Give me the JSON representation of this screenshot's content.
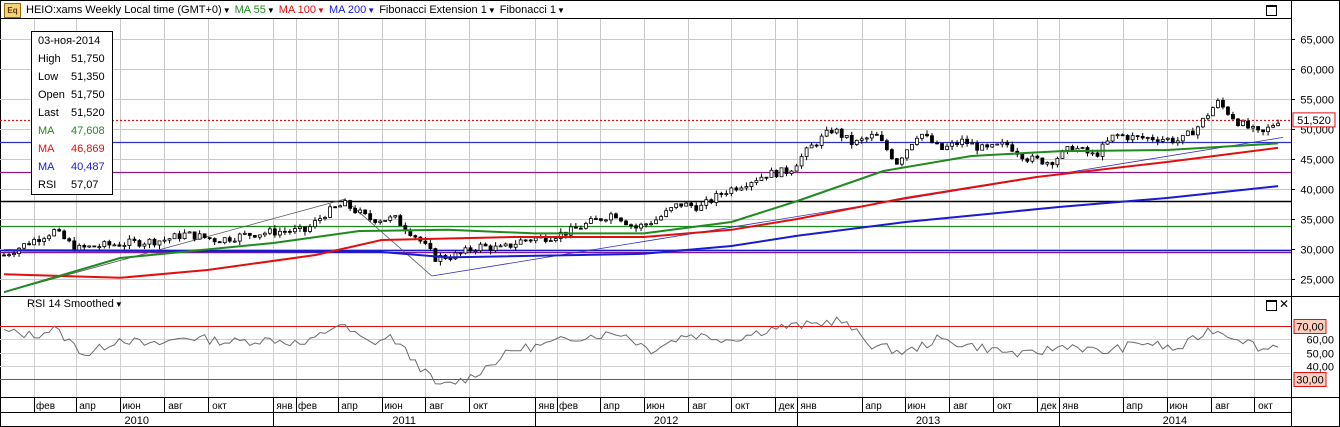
{
  "header": {
    "logo_text": "Eq",
    "instrument": "HEIO:xams Weekly Local time (GMT+0)",
    "indicators": [
      {
        "label": "MA 55",
        "color": "#1f8a1f"
      },
      {
        "label": "MA 100",
        "color": "#e01010"
      },
      {
        "label": "MA 200",
        "color": "#1a1ad0"
      },
      {
        "label": "Fibonacci Extension 1",
        "color": "#000000"
      },
      {
        "label": "Fibonacci 1",
        "color": "#000000"
      }
    ]
  },
  "infobox": {
    "date": "03-ноя-2014",
    "rows": [
      {
        "key": "High",
        "value": "51,750",
        "color": "#000000"
      },
      {
        "key": "Low",
        "value": "51,350",
        "color": "#000000"
      },
      {
        "key": "Open",
        "value": "51,750",
        "color": "#000000"
      },
      {
        "key": "Last",
        "value": "51,520",
        "color": "#000000"
      },
      {
        "key": "MA",
        "value": "47,608",
        "color": "#1f8a1f"
      },
      {
        "key": "MA",
        "value": "46,869",
        "color": "#e01010"
      },
      {
        "key": "MA",
        "value": "40,487",
        "color": "#1a1ad0"
      },
      {
        "key": "RSI",
        "value": "57,07",
        "color": "#000000"
      }
    ]
  },
  "rsi_panel": {
    "title": "RSI 14 Smoothed"
  },
  "chart_data": {
    "type": "candlestick",
    "price_axis": {
      "ticks": [
        25000,
        30000,
        35000,
        40000,
        45000,
        50000,
        55000,
        60000,
        65000
      ],
      "tick_labels": [
        "25,000",
        "30,000",
        "35,000",
        "40,000",
        "45,000",
        "50,000",
        "55,000",
        "60,000",
        "65,000"
      ],
      "range": [
        22500,
        68500
      ]
    },
    "last_price": {
      "value": 51520,
      "label": "51,520"
    },
    "rsi_axis": {
      "ticks": [
        40,
        50,
        60,
        70
      ],
      "tick_labels": [
        "40,00",
        "50,00",
        "60,00",
        "70,00"
      ],
      "range": [
        18,
        80
      ],
      "upper": {
        "value": 70,
        "label": "70,00"
      },
      "lower": {
        "value": 30,
        "label": "30,00"
      }
    },
    "month_ticks": [
      {
        "label": "фев",
        "date": "2010-02-01"
      },
      {
        "label": "апр",
        "date": "2010-04-01"
      },
      {
        "label": "июн",
        "date": "2010-06-01"
      },
      {
        "label": "авг",
        "date": "2010-08-01"
      },
      {
        "label": "окт",
        "date": "2010-10-01"
      },
      {
        "label": "янв",
        "date": "2011-01-01"
      },
      {
        "label": "фев",
        "date": "2011-02-01"
      },
      {
        "label": "апр",
        "date": "2011-04-01"
      },
      {
        "label": "июн",
        "date": "2011-06-01"
      },
      {
        "label": "авг",
        "date": "2011-08-01"
      },
      {
        "label": "окт",
        "date": "2011-10-01"
      },
      {
        "label": "янв",
        "date": "2012-01-01"
      },
      {
        "label": "фев",
        "date": "2012-02-01"
      },
      {
        "label": "апр",
        "date": "2012-04-01"
      },
      {
        "label": "июн",
        "date": "2012-06-01"
      },
      {
        "label": "авг",
        "date": "2012-08-01"
      },
      {
        "label": "окт",
        "date": "2012-10-01"
      },
      {
        "label": "дек",
        "date": "2012-12-01"
      },
      {
        "label": "янв",
        "date": "2013-01-01"
      },
      {
        "label": "апр",
        "date": "2013-04-01"
      },
      {
        "label": "июн",
        "date": "2013-06-01"
      },
      {
        "label": "авг",
        "date": "2013-08-01"
      },
      {
        "label": "окт",
        "date": "2013-10-01"
      },
      {
        "label": "дек",
        "date": "2013-12-01"
      },
      {
        "label": "янв",
        "date": "2014-01-01"
      },
      {
        "label": "апр",
        "date": "2014-04-01"
      },
      {
        "label": "июн",
        "date": "2014-06-01"
      },
      {
        "label": "авг",
        "date": "2014-08-01"
      },
      {
        "label": "окт",
        "date": "2014-10-01"
      }
    ],
    "years": [
      "2010",
      "2011",
      "2012",
      "2013",
      "2014"
    ],
    "horizontal_levels": [
      {
        "value": 51520,
        "color": "#e01010",
        "style": "dotted"
      },
      {
        "value": 47800,
        "color": "#3030c0",
        "style": "solid"
      },
      {
        "value": 42900,
        "color": "#8a1a8a",
        "style": "solid"
      },
      {
        "value": 38000,
        "color": "#000000",
        "style": "solid"
      },
      {
        "value": 33800,
        "color": "#1f8a1f",
        "style": "solid"
      },
      {
        "value": 29800,
        "color": "#1a1ad0",
        "style": "solid"
      },
      {
        "value": 29500,
        "color": "#7a1a9a",
        "style": "solid"
      }
    ],
    "close_path": [
      [
        "2009-12-21",
        29000
      ],
      [
        "2010-02-01",
        31500
      ],
      [
        "2010-03-01",
        33000
      ],
      [
        "2010-04-01",
        30000
      ],
      [
        "2010-05-01",
        30500
      ],
      [
        "2010-06-15",
        31000
      ],
      [
        "2010-08-01",
        31500
      ],
      [
        "2010-09-01",
        32500
      ],
      [
        "2010-10-15",
        31500
      ],
      [
        "2010-12-01",
        32500
      ],
      [
        "2011-01-15",
        33000
      ],
      [
        "2011-02-15",
        33000
      ],
      [
        "2011-03-15",
        36000
      ],
      [
        "2011-04-10",
        37500
      ],
      [
        "2011-05-15",
        35000
      ],
      [
        "2011-06-20",
        35000
      ],
      [
        "2011-07-20",
        32000
      ],
      [
        "2011-08-15",
        28500
      ],
      [
        "2011-09-15",
        29000
      ],
      [
        "2011-10-15",
        30500
      ],
      [
        "2011-11-15",
        30000
      ],
      [
        "2011-12-15",
        31500
      ],
      [
        "2012-01-20",
        32000
      ],
      [
        "2012-02-20",
        33000
      ],
      [
        "2012-03-20",
        34500
      ],
      [
        "2012-04-20",
        36000
      ],
      [
        "2012-05-20",
        33500
      ],
      [
        "2012-06-20",
        35000
      ],
      [
        "2012-07-20",
        37500
      ],
      [
        "2012-08-20",
        37000
      ],
      [
        "2012-09-20",
        39500
      ],
      [
        "2012-10-20",
        41000
      ],
      [
        "2012-11-20",
        42500
      ],
      [
        "2012-12-20",
        43000
      ],
      [
        "2013-01-20",
        47000
      ],
      [
        "2013-02-20",
        50000
      ],
      [
        "2013-03-20",
        47500
      ],
      [
        "2013-04-20",
        49000
      ],
      [
        "2013-05-20",
        44500
      ],
      [
        "2013-06-20",
        49500
      ],
      [
        "2013-07-20",
        46500
      ],
      [
        "2013-08-20",
        48000
      ],
      [
        "2013-09-20",
        46500
      ],
      [
        "2013-10-20",
        47500
      ],
      [
        "2013-11-20",
        45000
      ],
      [
        "2013-12-20",
        44500
      ],
      [
        "2014-01-20",
        47000
      ],
      [
        "2014-02-20",
        45500
      ],
      [
        "2014-03-20",
        49000
      ],
      [
        "2014-04-20",
        48500
      ],
      [
        "2014-05-20",
        48500
      ],
      [
        "2014-06-20",
        48000
      ],
      [
        "2014-07-15",
        50500
      ],
      [
        "2014-08-10",
        54500
      ],
      [
        "2014-09-10",
        51000
      ],
      [
        "2014-10-10",
        49000
      ],
      [
        "2014-11-03",
        51520
      ]
    ],
    "ma55": [
      [
        "2009-12-21",
        22800
      ],
      [
        "2010-06-01",
        28500
      ],
      [
        "2011-01-01",
        31000
      ],
      [
        "2011-05-01",
        33000
      ],
      [
        "2011-09-01",
        33200
      ],
      [
        "2012-01-01",
        32600
      ],
      [
        "2012-06-01",
        32600
      ],
      [
        "2012-10-01",
        34500
      ],
      [
        "2013-01-01",
        38000
      ],
      [
        "2013-05-01",
        43000
      ],
      [
        "2013-09-01",
        45500
      ],
      [
        "2014-01-01",
        46300
      ],
      [
        "2014-06-01",
        46500
      ],
      [
        "2014-11-03",
        47608
      ]
    ],
    "ma100": [
      [
        "2009-12-21",
        25800
      ],
      [
        "2010-06-01",
        25200
      ],
      [
        "2010-10-01",
        26500
      ],
      [
        "2011-03-01",
        29000
      ],
      [
        "2011-06-01",
        31500
      ],
      [
        "2011-12-01",
        32000
      ],
      [
        "2012-06-01",
        32000
      ],
      [
        "2012-10-01",
        33200
      ],
      [
        "2013-01-01",
        35000
      ],
      [
        "2013-06-01",
        38500
      ],
      [
        "2013-12-01",
        42000
      ],
      [
        "2014-06-01",
        44500
      ],
      [
        "2014-11-03",
        46869
      ]
    ],
    "ma200": [
      [
        "2009-12-21",
        29800
      ],
      [
        "2011-06-01",
        29500
      ],
      [
        "2011-09-01",
        28600
      ],
      [
        "2012-06-01",
        29200
      ],
      [
        "2012-10-01",
        30500
      ],
      [
        "2013-01-01",
        32200
      ],
      [
        "2013-06-01",
        34500
      ],
      [
        "2014-01-01",
        37000
      ],
      [
        "2014-06-01",
        38500
      ],
      [
        "2014-11-03",
        40487
      ]
    ],
    "rsi": [
      [
        "2009-12-21",
        66
      ],
      [
        "2010-02-01",
        63
      ],
      [
        "2010-03-01",
        68
      ],
      [
        "2010-04-15",
        48
      ],
      [
        "2010-06-01",
        61
      ],
      [
        "2010-07-15",
        55
      ],
      [
        "2010-09-01",
        62
      ],
      [
        "2010-11-01",
        58
      ],
      [
        "2011-01-01",
        60
      ],
      [
        "2011-02-15",
        56
      ],
      [
        "2011-04-01",
        72
      ],
      [
        "2011-05-15",
        57
      ],
      [
        "2011-06-15",
        62
      ],
      [
        "2011-08-01",
        35
      ],
      [
        "2011-08-20",
        24
      ],
      [
        "2011-10-01",
        31
      ],
      [
        "2011-12-01",
        52
      ],
      [
        "2012-01-15",
        56
      ],
      [
        "2012-03-01",
        62
      ],
      [
        "2012-05-01",
        65
      ],
      [
        "2012-06-10",
        52
      ],
      [
        "2012-08-01",
        64
      ],
      [
        "2012-10-01",
        60
      ],
      [
        "2012-12-01",
        69
      ],
      [
        "2013-01-20",
        71
      ],
      [
        "2013-03-01",
        75
      ],
      [
        "2013-04-15",
        56
      ],
      [
        "2013-06-01",
        50
      ],
      [
        "2013-07-15",
        60
      ],
      [
        "2013-09-15",
        54
      ],
      [
        "2013-11-15",
        48
      ],
      [
        "2014-01-15",
        56
      ],
      [
        "2014-03-01",
        50
      ],
      [
        "2014-05-01",
        58
      ],
      [
        "2014-06-15",
        52
      ],
      [
        "2014-08-01",
        68
      ],
      [
        "2014-09-15",
        60
      ],
      [
        "2014-10-15",
        52
      ],
      [
        "2014-11-03",
        57
      ]
    ]
  }
}
